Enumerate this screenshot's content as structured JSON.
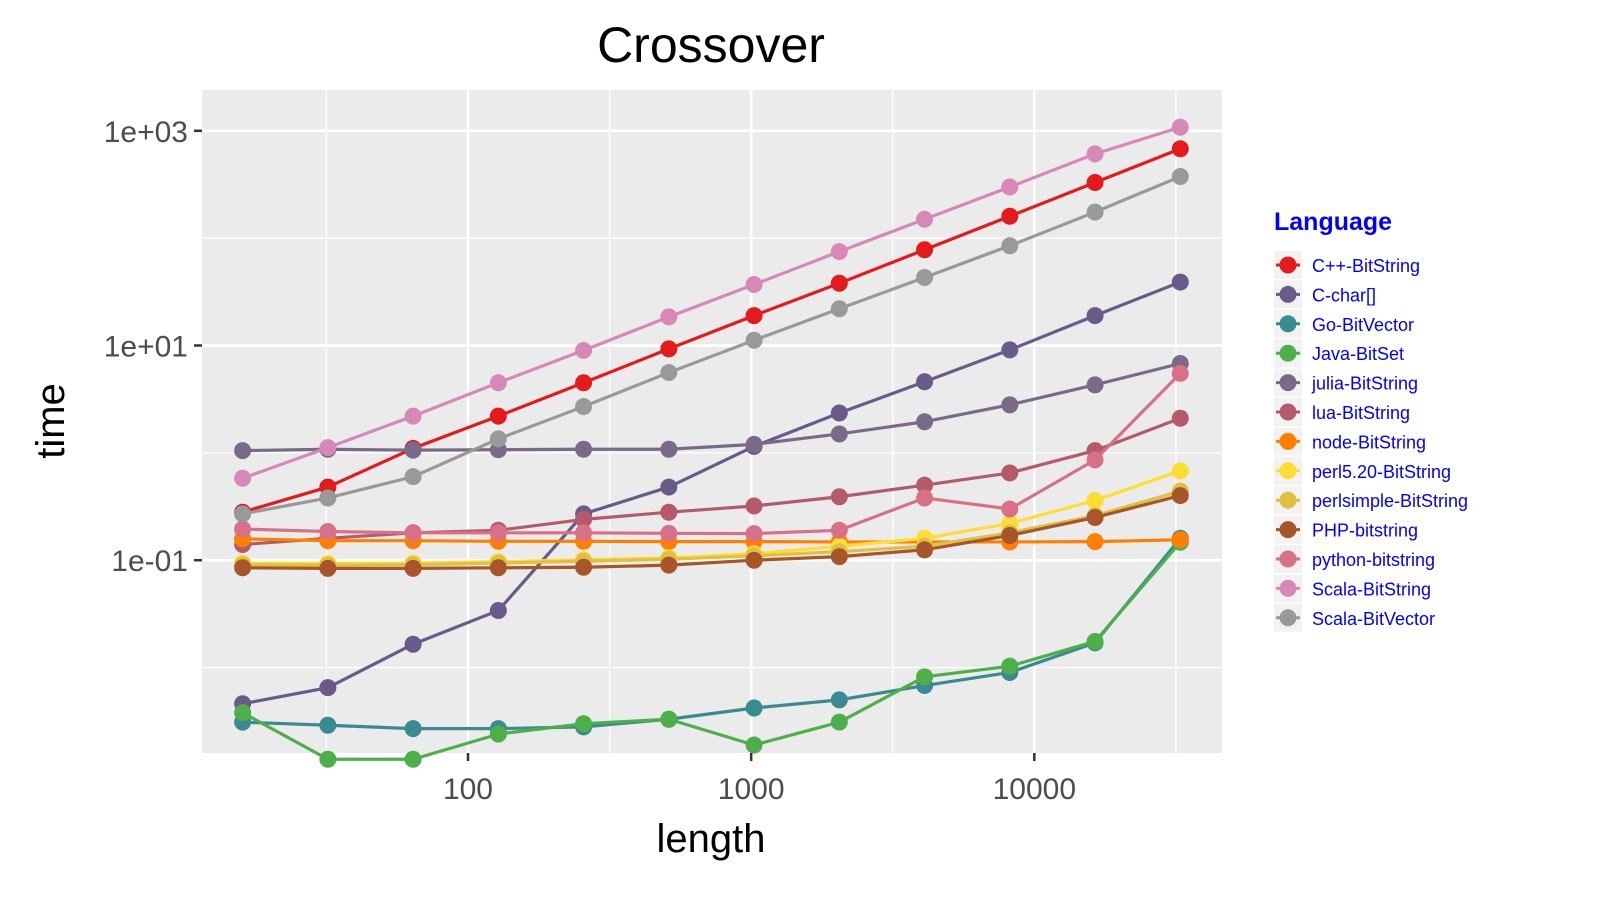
{
  "chart_data": {
    "type": "line",
    "title": "Crossover",
    "xlabel": "length",
    "ylabel": "time",
    "x_scale": "log",
    "y_scale": "log",
    "xlim": [
      11.5,
      46000
    ],
    "ylim": [
      0.0016,
      2400
    ],
    "x_ticks": [
      {
        "value": 100,
        "label": "100"
      },
      {
        "value": 1000,
        "label": "1000"
      },
      {
        "value": 10000,
        "label": "10000"
      }
    ],
    "y_ticks": [
      {
        "value": 0.1,
        "label": "1e-01"
      },
      {
        "value": 10,
        "label": "1e+01"
      },
      {
        "value": 1000,
        "label": "1e+03"
      }
    ],
    "grid": true,
    "legend": {
      "title": "Language",
      "position": "right",
      "text_color": "#0000ff"
    },
    "x": [
      16,
      32,
      64,
      128,
      256,
      512,
      1024,
      2048,
      4096,
      8192,
      16384,
      32768
    ],
    "series": [
      {
        "name": "C++-BitString",
        "color": "#e41a1c",
        "values": [
          0.28,
          0.48,
          1.1,
          2.2,
          4.5,
          9.3,
          19,
          38,
          78,
          160,
          330,
          680
        ]
      },
      {
        "name": "C-char[]",
        "color": "#6a5a8a",
        "values": [
          0.0046,
          0.0065,
          0.0165,
          0.034,
          0.27,
          0.48,
          1.15,
          2.35,
          4.6,
          9.1,
          19,
          39
        ]
      },
      {
        "name": "Go-BitVector",
        "color": "#3a8a92",
        "values": [
          0.0031,
          0.0029,
          0.0027,
          0.0027,
          0.0028,
          0.0033,
          0.0042,
          0.005,
          0.0068,
          0.009,
          0.017,
          0.16
        ]
      },
      {
        "name": "Java-BitSet",
        "color": "#4daf4a",
        "values": [
          0.0038,
          0.0014,
          0.0014,
          0.0024,
          0.003,
          0.0033,
          0.0019,
          0.0031,
          0.0082,
          0.0103,
          0.0175,
          0.147
        ]
      },
      {
        "name": "julia-BitString",
        "color": "#7a6a88",
        "values": [
          1.05,
          1.08,
          1.06,
          1.07,
          1.08,
          1.08,
          1.2,
          1.5,
          1.95,
          2.8,
          4.3,
          6.8
        ]
      },
      {
        "name": "lua-BitString",
        "color": "#b55a6a",
        "values": [
          0.14,
          0.16,
          0.18,
          0.19,
          0.24,
          0.28,
          0.32,
          0.39,
          0.5,
          0.65,
          1.05,
          2.1
        ]
      },
      {
        "name": "node-BitString",
        "color": "#ff7f00",
        "values": [
          0.158,
          0.152,
          0.152,
          0.15,
          0.15,
          0.149,
          0.149,
          0.148,
          0.148,
          0.148,
          0.149,
          0.155
        ]
      },
      {
        "name": "perl5.20-BitString",
        "color": "#ffdd33",
        "values": [
          0.094,
          0.093,
          0.094,
          0.097,
          0.101,
          0.105,
          0.115,
          0.135,
          0.16,
          0.22,
          0.36,
          0.68
        ]
      },
      {
        "name": "perlsimple-BitString",
        "color": "#e0c040",
        "values": [
          0.091,
          0.09,
          0.091,
          0.094,
          0.098,
          0.102,
          0.11,
          0.12,
          0.135,
          0.18,
          0.26,
          0.44
        ]
      },
      {
        "name": "PHP-bitstring",
        "color": "#a65628",
        "values": [
          0.085,
          0.084,
          0.084,
          0.085,
          0.086,
          0.09,
          0.1,
          0.108,
          0.125,
          0.17,
          0.25,
          0.4
        ]
      },
      {
        "name": "python-bitstring",
        "color": "#d87088",
        "values": [
          0.195,
          0.185,
          0.18,
          0.18,
          0.18,
          0.178,
          0.177,
          0.19,
          0.38,
          0.3,
          0.86,
          5.5
        ]
      },
      {
        "name": "Scala-BitString",
        "color": "#d888b8",
        "values": [
          0.58,
          1.12,
          2.2,
          4.5,
          9.0,
          18.5,
          37,
          75,
          150,
          300,
          610,
          1080
        ]
      },
      {
        "name": "Scala-BitVector",
        "color": "#999999",
        "values": [
          0.27,
          0.38,
          0.6,
          1.35,
          2.7,
          5.6,
          11.2,
          22,
          43,
          85,
          175,
          375
        ]
      }
    ]
  }
}
